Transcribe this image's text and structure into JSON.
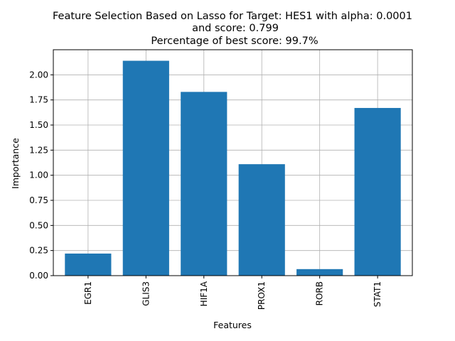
{
  "chart_data": {
    "type": "bar",
    "title_lines": [
      "Feature Selection Based on Lasso for Target: HES1 with alpha: 0.0001",
      "and score: 0.799",
      "Percentage of best score: 99.7%"
    ],
    "xlabel": "Features",
    "ylabel": "Importance",
    "categories": [
      "EGR1",
      "GLIS3",
      "HIF1A",
      "PROX1",
      "RORB",
      "STAT1"
    ],
    "values": [
      0.22,
      2.14,
      1.83,
      1.11,
      0.065,
      1.67
    ],
    "ylim": [
      0,
      2.25
    ],
    "yticks": [
      "0.00",
      "0.25",
      "0.50",
      "0.75",
      "1.00",
      "1.25",
      "1.50",
      "1.75",
      "2.00"
    ],
    "grid": true,
    "bar_color": "#1f77b4"
  }
}
